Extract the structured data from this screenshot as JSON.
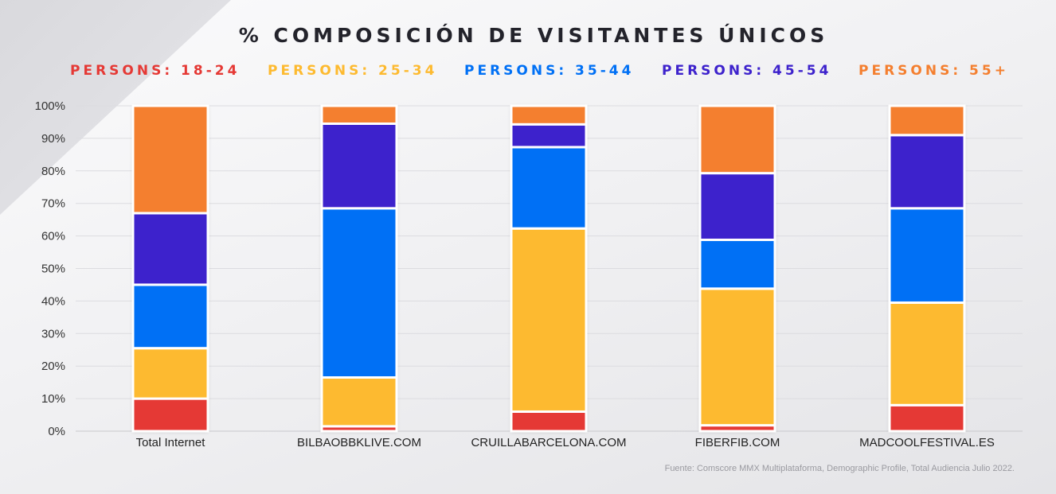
{
  "title": "% COMPOSICIÓN DE VISITANTES ÚNICOS",
  "source": "Fuente: Comscore MMX Multiplataforma, Demographic Profile, Total Audiencia Julio 2022.",
  "chart_data": {
    "type": "bar",
    "stacked": true,
    "categories": [
      "Total Internet",
      "BILBAOBBKLIVE.COM",
      "CRUILLABARCELONA.COM",
      "FIBERFIB.COM",
      "MADCOOLFESTIVAL.ES"
    ],
    "series": [
      {
        "name": "PERSONS: 18-24",
        "color": "#e53935",
        "values": [
          10,
          1.5,
          6,
          1.8,
          8
        ]
      },
      {
        "name": "PERSONS: 25-34",
        "color": "#fdba30",
        "values": [
          15.5,
          15,
          56.3,
          42,
          31.5
        ]
      },
      {
        "name": "PERSONS: 35-44",
        "color": "#0070f5",
        "values": [
          19.5,
          52,
          25,
          15,
          29
        ]
      },
      {
        "name": "PERSONS: 45-54",
        "color": "#3d22cc",
        "values": [
          22,
          26,
          7,
          20.5,
          22.5
        ]
      },
      {
        "name": "PERSONS: 55+",
        "color": "#f47f2f",
        "values": [
          33,
          5.5,
          5.7,
          20.7,
          9
        ]
      }
    ],
    "ylim": [
      0,
      100
    ],
    "yticks": [
      "0%",
      "10%",
      "20%",
      "30%",
      "40%",
      "50%",
      "60%",
      "70%",
      "80%",
      "90%",
      "100%"
    ],
    "legend_position": "top",
    "grid": true
  }
}
